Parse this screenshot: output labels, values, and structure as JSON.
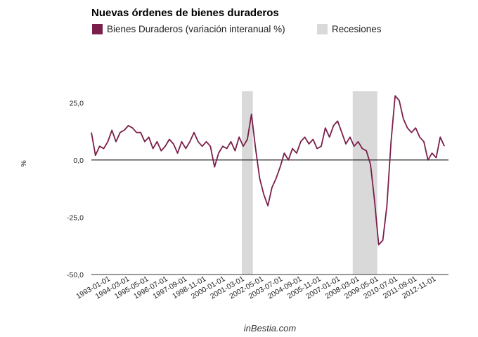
{
  "chart_data": {
    "type": "line",
    "title": "Nuevas órdenes de bienes duraderos",
    "ylabel": "%",
    "xlabel": "",
    "ylim": [
      -50,
      30
    ],
    "yticks": [
      -50,
      -25,
      0,
      25
    ],
    "ytick_labels": [
      "-50,0",
      "-25,0",
      "0,0",
      "25,0"
    ],
    "xticks": [
      "1993-01-01",
      "1994-03-01",
      "1995-05-01",
      "1996-07-01",
      "1997-09-01",
      "1998-11-01",
      "2000-01-01",
      "2001-03-01",
      "2002-05-01",
      "2003-07-01",
      "2004-09-01",
      "2005-11-01",
      "2007-01-01",
      "2008-03-01",
      "2009-05-01",
      "2010-07-01",
      "2011-09-01",
      "2012-11-01"
    ],
    "grid": false,
    "legend_position": "top",
    "colors": {
      "series": "#7a1f4a",
      "recession": "#d9d9d9"
    },
    "recessions": [
      [
        "2001-03-01",
        "2001-11-01"
      ],
      [
        "2007-12-01",
        "2009-06-01"
      ]
    ],
    "series": [
      {
        "name": "Bienes Duraderos (variación interanual %)",
        "x": [
          "1992-01",
          "1992-04",
          "1992-07",
          "1992-10",
          "1993-01",
          "1993-04",
          "1993-07",
          "1993-10",
          "1994-01",
          "1994-04",
          "1994-07",
          "1994-10",
          "1995-01",
          "1995-04",
          "1995-07",
          "1995-10",
          "1996-01",
          "1996-04",
          "1996-07",
          "1996-10",
          "1997-01",
          "1997-04",
          "1997-07",
          "1997-10",
          "1998-01",
          "1998-04",
          "1998-07",
          "1998-10",
          "1999-01",
          "1999-04",
          "1999-07",
          "1999-10",
          "2000-01",
          "2000-04",
          "2000-07",
          "2000-10",
          "2001-01",
          "2001-04",
          "2001-07",
          "2001-10",
          "2002-01",
          "2002-04",
          "2002-07",
          "2002-10",
          "2003-01",
          "2003-04",
          "2003-07",
          "2003-10",
          "2004-01",
          "2004-04",
          "2004-07",
          "2004-10",
          "2005-01",
          "2005-04",
          "2005-07",
          "2005-10",
          "2006-01",
          "2006-04",
          "2006-07",
          "2006-10",
          "2007-01",
          "2007-04",
          "2007-07",
          "2007-10",
          "2008-01",
          "2008-04",
          "2008-07",
          "2008-10",
          "2009-01",
          "2009-04",
          "2009-07",
          "2009-10",
          "2010-01",
          "2010-04",
          "2010-07",
          "2010-10",
          "2011-01",
          "2011-04",
          "2011-07",
          "2011-10",
          "2012-01",
          "2012-04",
          "2012-07",
          "2012-10",
          "2013-01",
          "2013-04",
          "2013-07"
        ],
        "values": [
          12,
          2,
          6,
          5,
          8,
          13,
          8,
          12,
          13,
          15,
          14,
          12,
          12,
          8,
          10,
          5,
          8,
          4,
          6,
          9,
          7,
          3,
          8,
          5,
          8,
          12,
          8,
          6,
          8,
          6,
          -3,
          3,
          6,
          5,
          8,
          4,
          10,
          6,
          9,
          20,
          5,
          -8,
          -15,
          -20,
          -12,
          -8,
          -3,
          3,
          0,
          5,
          3,
          8,
          10,
          7,
          9,
          5,
          6,
          14,
          10,
          15,
          17,
          12,
          7,
          10,
          6,
          8,
          5,
          4,
          -2,
          -18,
          -37,
          -35,
          -20,
          8,
          28,
          26,
          18,
          14,
          12,
          14,
          10,
          8,
          0,
          3,
          1,
          10,
          6
        ]
      }
    ],
    "credit": "inBestia.com"
  }
}
